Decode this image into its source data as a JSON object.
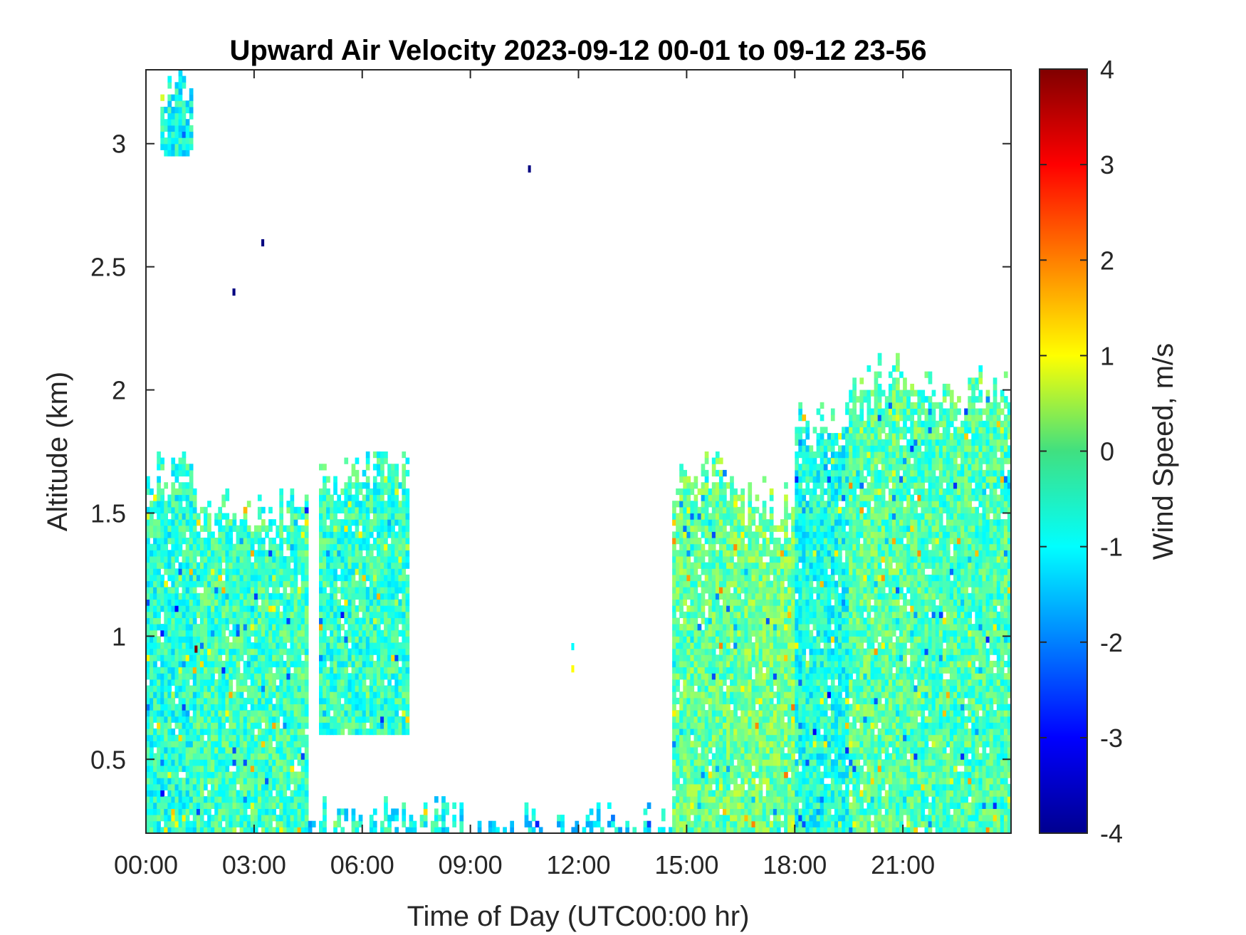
{
  "chart_data": {
    "type": "heatmap",
    "title": "Upward Air Velocity 2023-09-12 00-01 to 09-12 23-56",
    "xlabel": "Time of Day (UTC00:00 hr)",
    "ylabel": "Altitude (km)",
    "colorbar_label": "Wind Speed, m/s",
    "x_unit": "hours",
    "xlim": [
      0,
      24
    ],
    "ylim": [
      0.2,
      3.3
    ],
    "clim": [
      -4,
      4
    ],
    "colormap": "jet",
    "x_ticks": [
      {
        "value": 0,
        "label": "00:00"
      },
      {
        "value": 3,
        "label": "03:00"
      },
      {
        "value": 6,
        "label": "06:00"
      },
      {
        "value": 9,
        "label": "09:00"
      },
      {
        "value": 12,
        "label": "12:00"
      },
      {
        "value": 15,
        "label": "15:00"
      },
      {
        "value": 18,
        "label": "18:00"
      },
      {
        "value": 21,
        "label": "21:00"
      }
    ],
    "y_ticks": [
      {
        "value": 0.5,
        "label": "0.5"
      },
      {
        "value": 1.0,
        "label": "1"
      },
      {
        "value": 1.5,
        "label": "1.5"
      },
      {
        "value": 2.0,
        "label": "2"
      },
      {
        "value": 2.5,
        "label": "2.5"
      },
      {
        "value": 3.0,
        "label": "3"
      }
    ],
    "colorbar_ticks": [
      {
        "value": 4,
        "label": "4"
      },
      {
        "value": 3,
        "label": "3"
      },
      {
        "value": 2,
        "label": "2"
      },
      {
        "value": 1,
        "label": "1"
      },
      {
        "value": 0,
        "label": "0"
      },
      {
        "value": -1,
        "label": "-1"
      },
      {
        "value": -2,
        "label": "-2"
      },
      {
        "value": -3,
        "label": "-3"
      },
      {
        "value": -4,
        "label": "-4"
      }
    ],
    "echo_regions": [
      {
        "t_start": 0.0,
        "t_end": 1.4,
        "alt_low": 0.2,
        "alt_high": 1.75,
        "mean_velocity": -0.7
      },
      {
        "t_start": 0.4,
        "t_end": 1.3,
        "alt_low": 2.95,
        "alt_high": 3.3,
        "mean_velocity": -0.9
      },
      {
        "t_start": 1.4,
        "t_end": 4.5,
        "alt_low": 0.2,
        "alt_high": 1.6,
        "mean_velocity": -0.5
      },
      {
        "t_start": 4.8,
        "t_end": 7.3,
        "alt_low": 0.6,
        "alt_high": 1.75,
        "mean_velocity": -0.6
      },
      {
        "t_start": 4.5,
        "t_end": 8.3,
        "alt_low": 0.2,
        "alt_high": 0.35,
        "mean_velocity": -0.9
      },
      {
        "t_start": 8.3,
        "t_end": 14.6,
        "alt_low": 0.2,
        "alt_high": 0.32,
        "mean_velocity": -1.1
      },
      {
        "t_start": 14.6,
        "t_end": 16.3,
        "alt_low": 0.2,
        "alt_high": 1.75,
        "mean_velocity": -0.2
      },
      {
        "t_start": 16.3,
        "t_end": 18.0,
        "alt_low": 0.2,
        "alt_high": 1.65,
        "mean_velocity": -0.1
      },
      {
        "t_start": 18.0,
        "t_end": 19.5,
        "alt_low": 0.2,
        "alt_high": 1.95,
        "mean_velocity": -0.8
      },
      {
        "t_start": 19.5,
        "t_end": 21.5,
        "alt_low": 0.2,
        "alt_high": 2.15,
        "mean_velocity": -0.3
      },
      {
        "t_start": 21.5,
        "t_end": 24.0,
        "alt_low": 0.2,
        "alt_high": 2.1,
        "mean_velocity": -0.4
      }
    ],
    "notable_points": [
      {
        "t": 1.35,
        "alt": 0.95,
        "velocity": 4
      },
      {
        "t": 10.6,
        "alt": 2.9,
        "velocity": -4
      },
      {
        "t": 3.2,
        "alt": 2.6,
        "velocity": -4
      },
      {
        "t": 2.4,
        "alt": 2.4,
        "velocity": -4
      },
      {
        "t": 11.8,
        "alt": 0.96,
        "velocity": -1
      },
      {
        "t": 11.8,
        "alt": 0.87,
        "velocity": 1
      }
    ]
  }
}
